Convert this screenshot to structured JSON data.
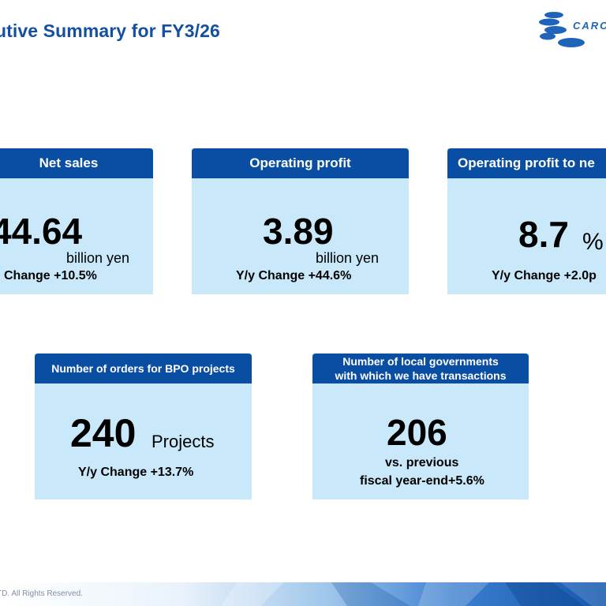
{
  "slide": {
    "title": "utive Summary for FY3/26",
    "copyright": "TD. All Rights Reserved.",
    "brand_colors": {
      "header": "#0a4ea3",
      "card_body": "#c9e9fb",
      "title": "#1450a0"
    }
  },
  "logo": {
    "text": "CARO",
    "icon": "stacked-ellipses-logo-icon"
  },
  "cards": {
    "net_sales": {
      "header": "Net sales",
      "value": "44.64",
      "unit": "billion yen",
      "change": "Change +10.5%"
    },
    "operating_profit": {
      "header": "Operating profit",
      "value": "3.89",
      "unit": "billion yen",
      "change": "Y/y Change +44.6%"
    },
    "op_margin": {
      "header": "Operating profit to ne",
      "value": "8.7",
      "unit": "%",
      "change": "Y/y Change +2.0p"
    },
    "bpo_orders": {
      "header": "Number of orders for BPO projects",
      "value": "240",
      "unit": "Projects",
      "change": "Y/y Change +13.7%"
    },
    "local_governments": {
      "header_line1": "Number of local governments",
      "header_line2": "with which we have transactions",
      "value": "206",
      "change_line1": "vs. previous",
      "change_line2": "fiscal year-end+5.6%"
    }
  }
}
